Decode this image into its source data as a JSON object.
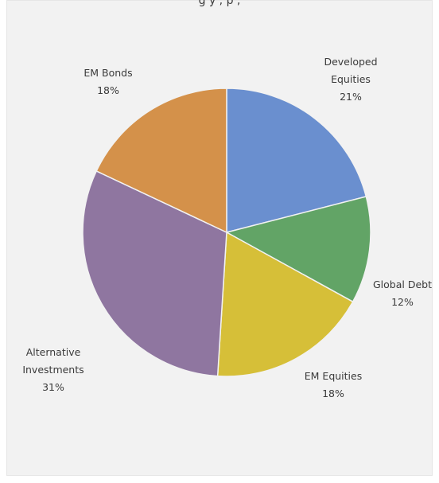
{
  "chart_data": {
    "type": "pie",
    "title": "",
    "slices": [
      {
        "label": "Developed Equities",
        "lines": [
          "Developed",
          "Equities"
        ],
        "value": 21,
        "value_label": "21%",
        "color": "#6a8fcf"
      },
      {
        "label": "Global Debt",
        "lines": [
          "Global Debt"
        ],
        "value": 12,
        "value_label": "12%",
        "color": "#62a466"
      },
      {
        "label": "EM Equities",
        "lines": [
          "EM Equities"
        ],
        "value": 18,
        "value_label": "18%",
        "color": "#d6bf38"
      },
      {
        "label": "Alternative Investments",
        "lines": [
          "Alternative",
          "Investments"
        ],
        "value": 31,
        "value_label": "31%",
        "color": "#8f76a0"
      },
      {
        "label": "EM Bonds",
        "lines": [
          "EM Bonds"
        ],
        "value": 18,
        "value_label": "18%",
        "color": "#d4914a"
      }
    ],
    "start_angle_deg": 0,
    "direction": "clockwise",
    "legend": "none"
  },
  "header": {
    "partial_title": "g                       y ,        p      ,"
  }
}
